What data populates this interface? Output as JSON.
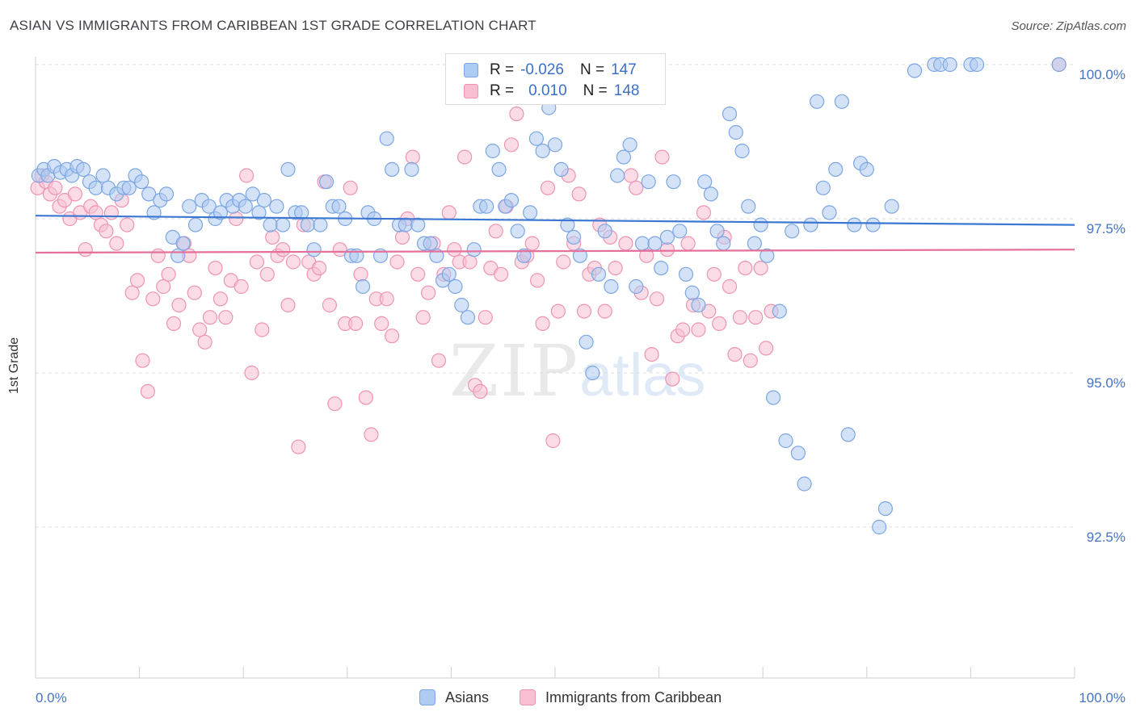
{
  "header": {
    "title": "ASIAN VS IMMIGRANTS FROM CARIBBEAN 1ST GRADE CORRELATION CHART",
    "source": "Source: ZipAtlas.com"
  },
  "watermark": {
    "zip": "ZIP",
    "atlas": "atlas"
  },
  "legend": {
    "rows": [
      {
        "r_label": "R =",
        "r_value": "-0.026",
        "n_label": "N =",
        "n_value": "147"
      },
      {
        "r_label": "R =",
        "r_value": "0.010",
        "n_label": "N =",
        "n_value": "148"
      }
    ]
  },
  "bottom_legend": {
    "asians": "Asians",
    "caribbean": "Immigrants from Caribbean"
  },
  "chart_data": {
    "type": "scatter",
    "title": "ASIAN VS IMMIGRANTS FROM CARIBBEAN 1ST GRADE CORRELATION CHART",
    "xlabel": "",
    "ylabel": "1st Grade",
    "xlim": [
      0,
      100
    ],
    "ylim": [
      90.3,
      100.6
    ],
    "x_ticks_labels": [
      "0.0%",
      "100.0%"
    ],
    "y_ticks": [
      92.5,
      95.0,
      97.5,
      100.0
    ],
    "y_tick_labels": [
      "92.5%",
      "95.0%",
      "97.5%",
      "100.0%"
    ],
    "grid": "horizontal dashed",
    "legend_placement": "top-center",
    "colors": {
      "asians_fill": "#aecbf1",
      "asians_stroke": "#7ca6e3",
      "asians_line": "#3b76d1",
      "caribbean_fill": "#f7bfd1",
      "caribbean_stroke": "#ee94b3",
      "caribbean_line": "#e4709b",
      "tick_label": "#4673c4"
    },
    "series": [
      {
        "name": "Asians",
        "r": -0.026,
        "n": 147,
        "trend": [
          [
            0,
            97.55
          ],
          [
            100,
            97.4
          ]
        ],
        "points": [
          [
            0.3,
            98.2
          ],
          [
            0.8,
            98.3
          ],
          [
            1.2,
            98.2
          ],
          [
            1.8,
            98.35
          ],
          [
            2.4,
            98.25
          ],
          [
            3.0,
            98.3
          ],
          [
            3.5,
            98.2
          ],
          [
            4.0,
            98.35
          ],
          [
            4.6,
            98.3
          ],
          [
            5.2,
            98.1
          ],
          [
            5.8,
            98.0
          ],
          [
            6.5,
            98.2
          ],
          [
            7.0,
            98.0
          ],
          [
            7.8,
            97.9
          ],
          [
            8.5,
            98.0
          ],
          [
            9.0,
            98.0
          ],
          [
            9.6,
            98.2
          ],
          [
            10.2,
            98.1
          ],
          [
            10.9,
            97.9
          ],
          [
            11.4,
            97.6
          ],
          [
            12.0,
            97.8
          ],
          [
            12.6,
            97.9
          ],
          [
            13.2,
            97.2
          ],
          [
            13.7,
            96.9
          ],
          [
            14.2,
            97.1
          ],
          [
            14.8,
            97.7
          ],
          [
            15.4,
            97.4
          ],
          [
            16.0,
            97.8
          ],
          [
            16.7,
            97.7
          ],
          [
            17.3,
            97.5
          ],
          [
            17.8,
            97.6
          ],
          [
            18.4,
            97.8
          ],
          [
            19.0,
            97.7
          ],
          [
            19.6,
            97.8
          ],
          [
            20.2,
            97.7
          ],
          [
            20.9,
            97.9
          ],
          [
            21.5,
            97.6
          ],
          [
            22.0,
            97.8
          ],
          [
            22.6,
            97.4
          ],
          [
            23.2,
            97.7
          ],
          [
            23.8,
            97.4
          ],
          [
            24.3,
            98.3
          ],
          [
            25.0,
            97.6
          ],
          [
            25.6,
            97.6
          ],
          [
            26.2,
            97.4
          ],
          [
            26.8,
            97.0
          ],
          [
            27.4,
            97.4
          ],
          [
            28.0,
            98.1
          ],
          [
            28.6,
            97.7
          ],
          [
            29.2,
            97.7
          ],
          [
            29.8,
            97.5
          ],
          [
            30.4,
            96.9
          ],
          [
            30.9,
            96.9
          ],
          [
            31.5,
            96.4
          ],
          [
            32.0,
            97.6
          ],
          [
            32.6,
            97.5
          ],
          [
            33.2,
            96.9
          ],
          [
            33.8,
            98.8
          ],
          [
            34.3,
            98.3
          ],
          [
            35.0,
            97.4
          ],
          [
            35.6,
            97.4
          ],
          [
            36.2,
            98.3
          ],
          [
            36.8,
            97.4
          ],
          [
            37.4,
            97.1
          ],
          [
            38.0,
            97.1
          ],
          [
            38.6,
            96.9
          ],
          [
            39.2,
            96.5
          ],
          [
            39.8,
            96.6
          ],
          [
            40.4,
            96.4
          ],
          [
            41.0,
            96.1
          ],
          [
            41.6,
            95.9
          ],
          [
            42.2,
            97.0
          ],
          [
            42.8,
            97.7
          ],
          [
            43.4,
            97.7
          ],
          [
            44.0,
            98.6
          ],
          [
            44.6,
            98.3
          ],
          [
            45.2,
            97.7
          ],
          [
            45.8,
            97.8
          ],
          [
            46.4,
            97.3
          ],
          [
            47.0,
            96.9
          ],
          [
            47.6,
            97.6
          ],
          [
            48.2,
            98.8
          ],
          [
            48.8,
            98.6
          ],
          [
            49.4,
            99.3
          ],
          [
            50.0,
            98.7
          ],
          [
            50.6,
            98.3
          ],
          [
            51.2,
            97.4
          ],
          [
            51.8,
            97.2
          ],
          [
            52.4,
            96.9
          ],
          [
            53.0,
            95.5
          ],
          [
            53.6,
            95.0
          ],
          [
            54.2,
            96.6
          ],
          [
            54.8,
            97.3
          ],
          [
            55.4,
            96.4
          ],
          [
            56.0,
            98.2
          ],
          [
            56.6,
            98.5
          ],
          [
            57.2,
            98.7
          ],
          [
            57.8,
            96.4
          ],
          [
            58.4,
            97.1
          ],
          [
            59.0,
            98.1
          ],
          [
            59.6,
            97.1
          ],
          [
            60.2,
            96.7
          ],
          [
            60.8,
            97.2
          ],
          [
            61.4,
            98.1
          ],
          [
            62.0,
            97.3
          ],
          [
            62.6,
            96.6
          ],
          [
            63.2,
            96.3
          ],
          [
            63.8,
            96.1
          ],
          [
            64.4,
            98.1
          ],
          [
            65.0,
            97.9
          ],
          [
            65.6,
            97.3
          ],
          [
            66.2,
            97.1
          ],
          [
            66.8,
            99.2
          ],
          [
            67.4,
            98.9
          ],
          [
            68.0,
            98.6
          ],
          [
            68.6,
            97.7
          ],
          [
            69.2,
            97.1
          ],
          [
            69.8,
            97.4
          ],
          [
            70.4,
            96.9
          ],
          [
            71.0,
            94.6
          ],
          [
            71.6,
            96.0
          ],
          [
            72.2,
            93.9
          ],
          [
            72.8,
            97.3
          ],
          [
            73.4,
            93.7
          ],
          [
            74.0,
            93.2
          ],
          [
            74.6,
            97.4
          ],
          [
            75.2,
            99.4
          ],
          [
            75.8,
            98.0
          ],
          [
            76.4,
            97.6
          ],
          [
            77.0,
            98.3
          ],
          [
            77.6,
            99.4
          ],
          [
            78.2,
            94.0
          ],
          [
            78.8,
            97.4
          ],
          [
            79.4,
            98.4
          ],
          [
            80.0,
            98.3
          ],
          [
            80.6,
            97.4
          ],
          [
            81.2,
            92.5
          ],
          [
            81.8,
            92.8
          ],
          [
            82.4,
            97.7
          ],
          [
            84.6,
            99.9
          ],
          [
            86.5,
            100.0
          ],
          [
            87.1,
            100.0
          ],
          [
            88.0,
            100.0
          ],
          [
            90.0,
            100.0
          ],
          [
            90.6,
            100.0
          ],
          [
            98.5,
            100.0
          ]
        ]
      },
      {
        "name": "Immigrants from Caribbean",
        "r": 0.01,
        "n": 148,
        "trend": [
          [
            0,
            96.95
          ],
          [
            100,
            97.0
          ]
        ],
        "points": [
          [
            0.2,
            98.0
          ],
          [
            0.6,
            98.2
          ],
          [
            1.0,
            98.1
          ],
          [
            1.4,
            97.9
          ],
          [
            1.9,
            98.0
          ],
          [
            2.3,
            97.7
          ],
          [
            2.8,
            97.8
          ],
          [
            3.3,
            97.5
          ],
          [
            3.8,
            97.9
          ],
          [
            4.3,
            97.6
          ],
          [
            4.8,
            97.0
          ],
          [
            5.3,
            97.7
          ],
          [
            5.8,
            97.6
          ],
          [
            6.3,
            97.4
          ],
          [
            6.8,
            97.3
          ],
          [
            7.3,
            97.6
          ],
          [
            7.8,
            97.1
          ],
          [
            8.3,
            97.8
          ],
          [
            8.8,
            97.4
          ],
          [
            9.3,
            96.3
          ],
          [
            9.8,
            96.5
          ],
          [
            10.3,
            95.2
          ],
          [
            10.8,
            94.7
          ],
          [
            11.3,
            96.2
          ],
          [
            11.8,
            96.9
          ],
          [
            12.3,
            96.4
          ],
          [
            12.8,
            96.6
          ],
          [
            13.3,
            95.8
          ],
          [
            13.8,
            96.1
          ],
          [
            14.3,
            97.1
          ],
          [
            14.8,
            96.9
          ],
          [
            15.3,
            96.3
          ],
          [
            15.8,
            95.7
          ],
          [
            16.3,
            95.5
          ],
          [
            16.8,
            95.9
          ],
          [
            17.3,
            96.7
          ],
          [
            17.8,
            96.2
          ],
          [
            18.3,
            95.9
          ],
          [
            18.8,
            96.5
          ],
          [
            19.3,
            97.5
          ],
          [
            19.8,
            96.4
          ],
          [
            20.3,
            98.2
          ],
          [
            20.8,
            95.0
          ],
          [
            21.3,
            96.8
          ],
          [
            21.8,
            95.7
          ],
          [
            22.3,
            96.6
          ],
          [
            22.8,
            97.2
          ],
          [
            23.3,
            96.9
          ],
          [
            23.8,
            97.0
          ],
          [
            24.3,
            96.1
          ],
          [
            24.8,
            96.8
          ],
          [
            25.3,
            93.8
          ],
          [
            25.8,
            97.4
          ],
          [
            26.3,
            96.8
          ],
          [
            26.8,
            96.6
          ],
          [
            27.3,
            96.7
          ],
          [
            27.8,
            98.1
          ],
          [
            28.3,
            96.1
          ],
          [
            28.8,
            94.5
          ],
          [
            29.3,
            97.0
          ],
          [
            29.8,
            95.8
          ],
          [
            30.3,
            98.0
          ],
          [
            30.8,
            95.8
          ],
          [
            31.3,
            96.6
          ],
          [
            31.8,
            94.6
          ],
          [
            32.3,
            94.0
          ],
          [
            32.8,
            96.2
          ],
          [
            33.3,
            95.8
          ],
          [
            33.8,
            96.2
          ],
          [
            34.3,
            95.6
          ],
          [
            34.8,
            96.8
          ],
          [
            35.3,
            97.2
          ],
          [
            35.8,
            97.5
          ],
          [
            36.3,
            98.5
          ],
          [
            36.8,
            96.6
          ],
          [
            37.3,
            95.9
          ],
          [
            37.8,
            96.3
          ],
          [
            38.3,
            97.1
          ],
          [
            38.8,
            95.2
          ],
          [
            39.3,
            96.6
          ],
          [
            39.8,
            97.6
          ],
          [
            40.3,
            97.0
          ],
          [
            40.8,
            96.8
          ],
          [
            41.3,
            98.5
          ],
          [
            41.8,
            96.8
          ],
          [
            42.3,
            94.8
          ],
          [
            42.8,
            94.7
          ],
          [
            43.3,
            95.9
          ],
          [
            43.8,
            96.7
          ],
          [
            44.3,
            97.3
          ],
          [
            44.8,
            96.6
          ],
          [
            45.3,
            97.7
          ],
          [
            45.8,
            98.7
          ],
          [
            46.3,
            99.2
          ],
          [
            46.8,
            96.8
          ],
          [
            47.3,
            96.9
          ],
          [
            47.8,
            97.1
          ],
          [
            48.3,
            96.5
          ],
          [
            48.8,
            95.8
          ],
          [
            49.3,
            98.0
          ],
          [
            49.8,
            93.9
          ],
          [
            50.3,
            96.0
          ],
          [
            50.8,
            96.8
          ],
          [
            51.3,
            98.2
          ],
          [
            51.8,
            97.1
          ],
          [
            52.3,
            97.9
          ],
          [
            52.8,
            96.0
          ],
          [
            53.3,
            96.6
          ],
          [
            53.8,
            96.7
          ],
          [
            54.3,
            97.4
          ],
          [
            54.8,
            96.0
          ],
          [
            55.3,
            97.2
          ],
          [
            55.8,
            96.7
          ],
          [
            56.3,
            100.0
          ],
          [
            56.8,
            97.1
          ],
          [
            57.3,
            98.2
          ],
          [
            57.8,
            98.0
          ],
          [
            58.3,
            96.3
          ],
          [
            58.8,
            96.9
          ],
          [
            59.3,
            95.3
          ],
          [
            59.8,
            96.2
          ],
          [
            60.3,
            98.5
          ],
          [
            60.8,
            97.0
          ],
          [
            61.3,
            94.9
          ],
          [
            61.8,
            95.6
          ],
          [
            62.3,
            95.7
          ],
          [
            62.8,
            97.1
          ],
          [
            63.3,
            96.1
          ],
          [
            63.8,
            95.7
          ],
          [
            64.3,
            97.6
          ],
          [
            64.8,
            96.0
          ],
          [
            65.3,
            96.6
          ],
          [
            65.8,
            95.8
          ],
          [
            66.3,
            97.2
          ],
          [
            66.8,
            96.4
          ],
          [
            67.3,
            95.3
          ],
          [
            67.8,
            95.9
          ],
          [
            68.3,
            96.7
          ],
          [
            68.8,
            95.2
          ],
          [
            69.3,
            95.9
          ],
          [
            69.8,
            96.7
          ],
          [
            70.3,
            95.4
          ],
          [
            70.8,
            96.0
          ],
          [
            98.5,
            100.0
          ]
        ]
      }
    ]
  }
}
